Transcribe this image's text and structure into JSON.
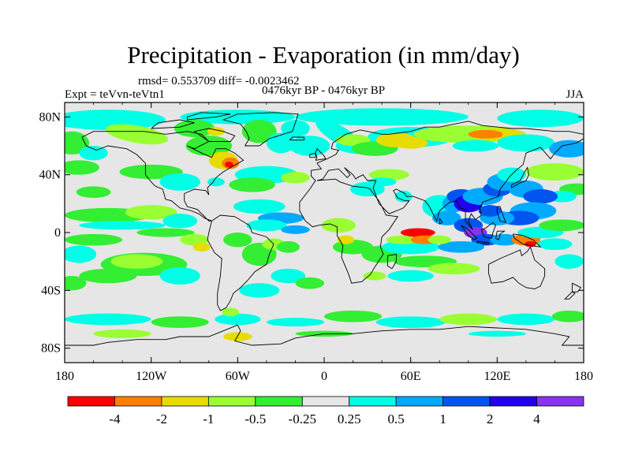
{
  "title": "Precipitation - Evaporation (in mm/day)",
  "stats": "rmsd= 0.553709 diff= -0.0023462",
  "left_label": "Expt = teVvn-teVtn1",
  "center_label": "0476kyr BP - 0476kyr BP",
  "right_label": "JJA",
  "map": {
    "lat_ticks": [
      "80N",
      "40N",
      "0",
      "40S",
      "80S"
    ],
    "lat_values": [
      80,
      40,
      0,
      -40,
      -80
    ],
    "lon_ticks": [
      "180",
      "120W",
      "60W",
      "0",
      "60E",
      "120E",
      "180"
    ],
    "lon_values": [
      -180,
      -120,
      -60,
      0,
      60,
      120,
      180
    ],
    "lat_range": [
      -90,
      90
    ],
    "lon_range": [
      -180,
      180
    ],
    "background_color": "#e6e6e6"
  },
  "colorbar": {
    "labels": [
      "-4",
      "-2",
      "-1",
      "-0.5",
      "-0.25",
      "0.25",
      "0.5",
      "1",
      "2",
      "4"
    ],
    "colors": [
      "#ff0000",
      "#ff8000",
      "#e6dc00",
      "#99ff33",
      "#33ee33",
      "#e6e6e6",
      "#00ffe6",
      "#00aaff",
      "#0055ee",
      "#2200ee",
      "#8833ee"
    ]
  },
  "field_colors": {
    "green": "#33ee33",
    "lightgreen": "#99ff33",
    "yellow": "#e6dc00",
    "orange": "#ff8000",
    "red": "#ff0000",
    "cyan": "#00ffe6",
    "lightblue": "#00aaff",
    "blue": "#0055ee",
    "darkblue": "#2200ee",
    "purple": "#8833ee"
  }
}
